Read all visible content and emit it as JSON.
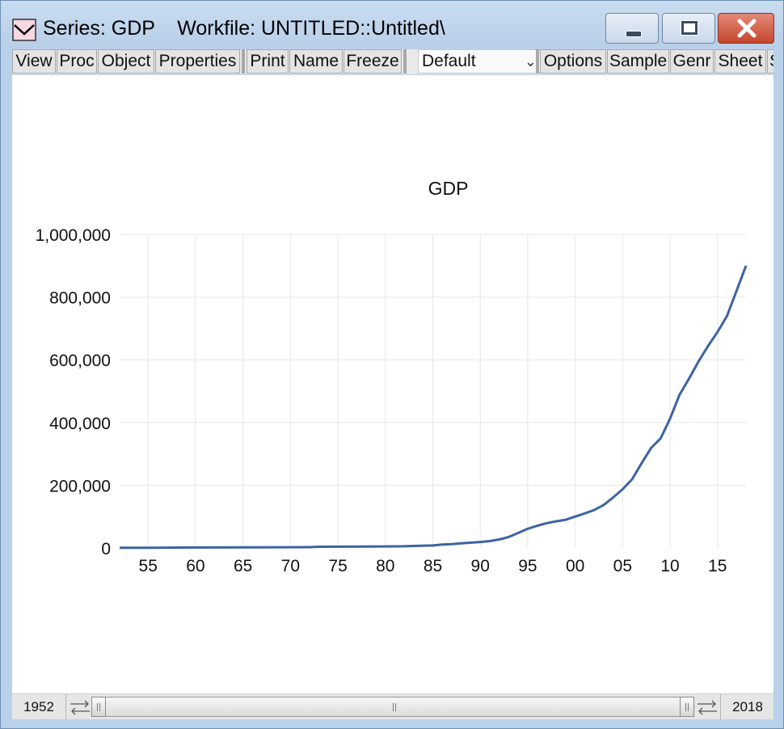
{
  "window": {
    "title": "Series: GDP    Workfile: UNTITLED::Untitled\\",
    "icon": "series-graph-icon"
  },
  "toolbar": {
    "buttons": [
      "View",
      "Proc",
      "Object",
      "Properties",
      "Print",
      "Name",
      "Freeze",
      "Options",
      "Sample",
      "Genr",
      "Sheet",
      "S"
    ],
    "view_dropdown": "Default"
  },
  "sample": {
    "start": "1952",
    "end": "2018"
  },
  "chart_data": {
    "type": "line",
    "title": "GDP",
    "xlabel": "",
    "ylabel": "",
    "xlim": [
      1952,
      2018
    ],
    "ylim": [
      0,
      1000000
    ],
    "x_ticks": [
      "55",
      "60",
      "65",
      "70",
      "75",
      "80",
      "85",
      "90",
      "95",
      "00",
      "05",
      "10",
      "15"
    ],
    "y_ticks": [
      "0",
      "200,000",
      "400,000",
      "600,000",
      "800,000",
      "1,000,000"
    ],
    "grid": true,
    "series": [
      {
        "color": "#3d63a3",
        "x": [
          1952,
          1955,
          1960,
          1965,
          1970,
          1972,
          1973,
          1975,
          1978,
          1980,
          1982,
          1983,
          1985,
          1986,
          1987,
          1988,
          1990,
          1991,
          1992,
          1993,
          1994,
          1995,
          1996,
          1997,
          1998,
          1999,
          2000,
          2001,
          2002,
          2003,
          2004,
          2005,
          2006,
          2007,
          2008,
          2009,
          2010,
          2011,
          2012,
          2013,
          2014,
          2015,
          2016,
          2017,
          2018
        ],
        "y": [
          700,
          900,
          1500,
          1800,
          2300,
          2600,
          3800,
          4000,
          4500,
          5000,
          5500,
          6500,
          8000,
          11000,
          12000,
          15000,
          19000,
          22000,
          27000,
          35000,
          48000,
          61000,
          71000,
          79000,
          85000,
          90000,
          100000,
          110000,
          121000,
          137000,
          161000,
          187000,
          219000,
          270000,
          319000,
          349000,
          413000,
          489000,
          540000,
          595000,
          644000,
          689000,
          740000,
          820000,
          900000
        ]
      }
    ]
  }
}
